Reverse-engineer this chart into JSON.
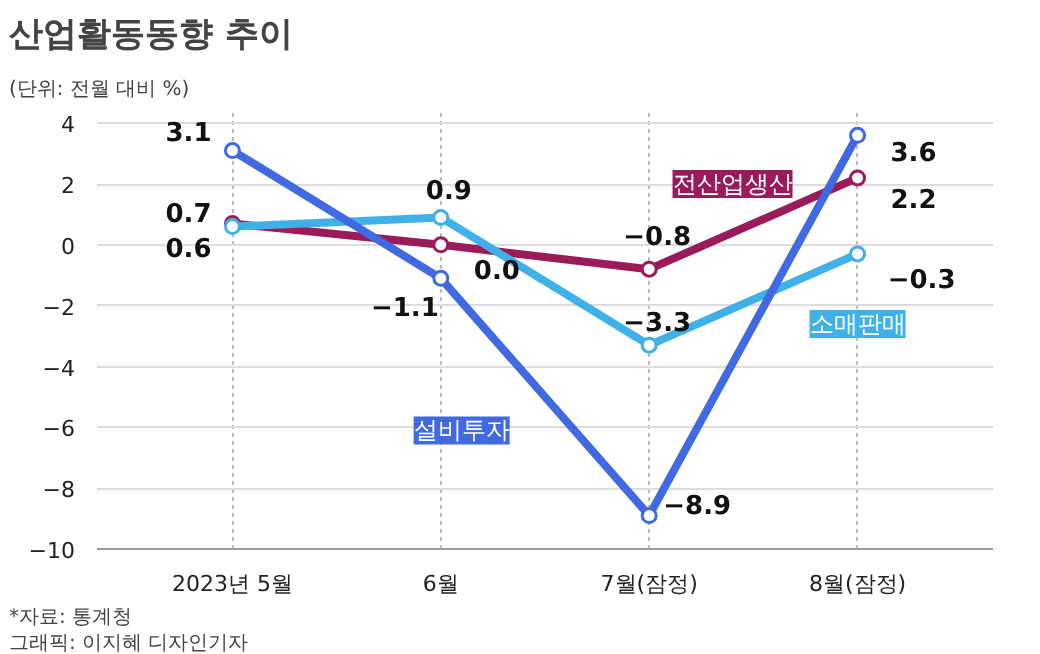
{
  "chart_data": {
    "type": "line",
    "title": "산업활동동향 추이",
    "subtitle": "(단위: 전월 대비 %)",
    "categories": [
      "2023년 5월",
      "6월",
      "7월(잠정)",
      "8월(잠정)"
    ],
    "series": [
      {
        "name": "전산업생산",
        "color": "#9b1b5a",
        "values": [
          0.7,
          0.0,
          -0.8,
          2.2
        ],
        "value_labels": [
          "0.7",
          "0.0",
          "−0.8",
          "2.2"
        ]
      },
      {
        "name": "소매판매",
        "color": "#3fb0e8",
        "values": [
          0.6,
          0.9,
          -3.3,
          -0.3
        ],
        "value_labels": [
          "0.6",
          "0.9",
          "−3.3",
          "−0.3"
        ]
      },
      {
        "name": "설비투자",
        "color": "#4169e1",
        "values": [
          3.1,
          -1.1,
          -8.9,
          3.6
        ],
        "value_labels": [
          "3.1",
          "−1.1",
          "−8.9",
          "3.6"
        ]
      }
    ],
    "ylim": [
      -10,
      4.4
    ],
    "yticks": [
      {
        "value": -10,
        "label": "−10"
      },
      {
        "value": -8,
        "label": "−8"
      },
      {
        "value": -6,
        "label": "−6"
      },
      {
        "value": -4,
        "label": "−4"
      },
      {
        "value": -2,
        "label": "−2"
      },
      0,
      2,
      4
    ],
    "grid": true,
    "marker": "circle",
    "line_style": "solid",
    "annotations": [
      "*자료: 통계청",
      "그래픽: 이지혜 디자인기자"
    ]
  }
}
